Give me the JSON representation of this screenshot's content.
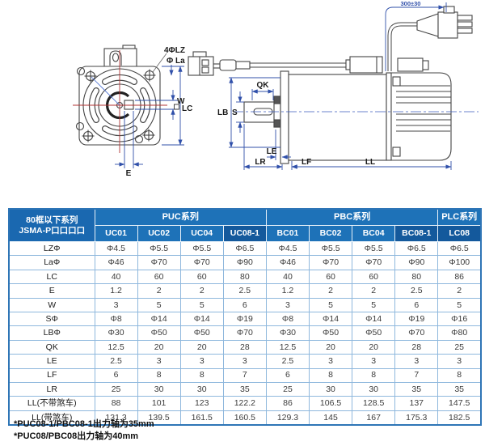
{
  "diagram": {
    "front_view": {
      "callout_holes": "4ΦLZ",
      "callout_flange": "Φ La",
      "dim_w": "W",
      "dim_lc": "LC",
      "dim_e": "E"
    },
    "side_view": {
      "dim_qk": "QK",
      "dim_lb": "LB",
      "dim_s": "S",
      "dim_le": "LE",
      "dim_lr": "LR",
      "dim_lf": "LF",
      "dim_ll": "LL",
      "cable_length": "300±30"
    }
  },
  "table": {
    "corner_header": {
      "line1": "80框以下系列",
      "line2": "JSMA-P口口口口"
    },
    "groups": [
      {
        "label": "PUC系列",
        "span": 4
      },
      {
        "label": "PBC系列",
        "span": 4
      },
      {
        "label": "PLC系列",
        "span": 1
      }
    ],
    "columns": [
      "UC01",
      "UC02",
      "UC04",
      "UC08-1",
      "BC01",
      "BC02",
      "BC04",
      "BC08-1",
      "LC08"
    ],
    "rows": [
      {
        "label": "LZΦ",
        "values": [
          "Φ4.5",
          "Φ5.5",
          "Φ5.5",
          "Φ6.5",
          "Φ4.5",
          "Φ5.5",
          "Φ5.5",
          "Φ6.5",
          "Φ6.5"
        ]
      },
      {
        "label": "LaΦ",
        "values": [
          "Φ46",
          "Φ70",
          "Φ70",
          "Φ90",
          "Φ46",
          "Φ70",
          "Φ70",
          "Φ90",
          "Φ100"
        ]
      },
      {
        "label": "LC",
        "values": [
          "40",
          "60",
          "60",
          "80",
          "40",
          "60",
          "60",
          "80",
          "86"
        ]
      },
      {
        "label": "E",
        "values": [
          "1.2",
          "2",
          "2",
          "2.5",
          "1.2",
          "2",
          "2",
          "2.5",
          "2"
        ]
      },
      {
        "label": "W",
        "values": [
          "3",
          "5",
          "5",
          "6",
          "3",
          "5",
          "5",
          "6",
          "5"
        ]
      },
      {
        "label": "SΦ",
        "values": [
          "Φ8",
          "Φ14",
          "Φ14",
          "Φ19",
          "Φ8",
          "Φ14",
          "Φ14",
          "Φ19",
          "Φ16"
        ]
      },
      {
        "label": "LBΦ",
        "values": [
          "Φ30",
          "Φ50",
          "Φ50",
          "Φ70",
          "Φ30",
          "Φ50",
          "Φ50",
          "Φ70",
          "Φ80"
        ]
      },
      {
        "label": "QK",
        "values": [
          "12.5",
          "20",
          "20",
          "28",
          "12.5",
          "20",
          "20",
          "28",
          "25"
        ]
      },
      {
        "label": "LE",
        "values": [
          "2.5",
          "3",
          "3",
          "3",
          "2.5",
          "3",
          "3",
          "3",
          "3"
        ]
      },
      {
        "label": "LF",
        "values": [
          "6",
          "8",
          "8",
          "7",
          "6",
          "8",
          "8",
          "7",
          "8"
        ]
      },
      {
        "label": "LR",
        "values": [
          "25",
          "30",
          "30",
          "35",
          "25",
          "30",
          "30",
          "35",
          "35"
        ]
      },
      {
        "label": "LL(不带煞车)",
        "values": [
          "88",
          "101",
          "123",
          "122.2",
          "86",
          "106.5",
          "128.5",
          "137",
          "147.5"
        ]
      },
      {
        "label": "LL(带煞车)",
        "values": [
          "131.3",
          "139.5",
          "161.5",
          "160.5",
          "129.3",
          "145",
          "167",
          "175.3",
          "182.5"
        ]
      }
    ]
  },
  "notes": [
    "*PUC08-1/PBC08-1出力轴为35mm",
    "*PUC08/PBC08出力轴为40mm"
  ],
  "colors": {
    "header_blue": "#1e72b8",
    "header_dark": "#14599c",
    "corner_blue": "#1a68b0",
    "border_blue": "#2e75b6",
    "grid_blue": "#8fb8dd",
    "dim_blue": "#3050aa",
    "centerline_red": "#b03535",
    "outline": "#444444"
  }
}
